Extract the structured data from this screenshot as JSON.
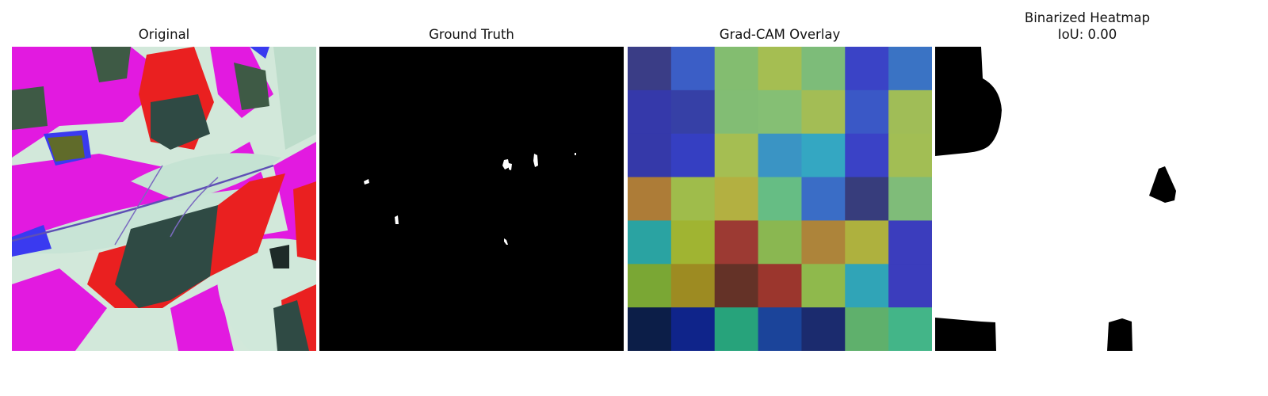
{
  "panels": {
    "original": {
      "title": "Original"
    },
    "ground_truth": {
      "title": "Ground Truth"
    },
    "gradcam": {
      "title": "Grad-CAM Overlay",
      "grid": [
        [
          "#3a3d86",
          "#3b5ec6",
          "#83bd70",
          "#a5be52",
          "#7dbc79",
          "#3a43c6",
          "#3a73c4"
        ],
        [
          "#3539aa",
          "#3640a6",
          "#82bd74",
          "#85bf74",
          "#a3bd55",
          "#3a58c6",
          "#a0bd57"
        ],
        [
          "#3539a9",
          "#353fc2",
          "#a5be52",
          "#3a94c4",
          "#34a7c2",
          "#3a42c6",
          "#a2be54"
        ],
        [
          "#ad7c37",
          "#9fbc4b",
          "#b3b041",
          "#66bd84",
          "#3a6dc6",
          "#373d7c",
          "#7fbc79"
        ],
        [
          "#2aa3a2",
          "#a0b432",
          "#9c3a33",
          "#8ab751",
          "#ad843a",
          "#aeb13e",
          "#3b3dbd"
        ],
        [
          "#7aa734",
          "#9d8b22",
          "#643227",
          "#9b362d",
          "#8fb94c",
          "#30a4b7",
          "#3b3dbd"
        ],
        [
          "#0c1e48",
          "#0f248a",
          "#27a37b",
          "#1b449a",
          "#1b2b6e",
          "#5fb06c",
          "#43b588"
        ]
      ]
    },
    "binarized": {
      "title": "Binarized Heatmap",
      "subtitle": "IoU: 0.00"
    }
  }
}
